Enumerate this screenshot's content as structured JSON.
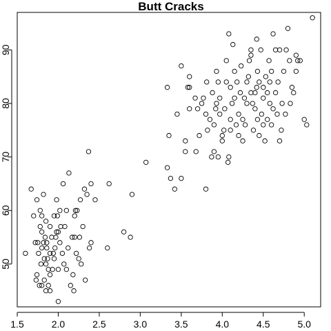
{
  "chart_data": {
    "type": "scatter",
    "title": "Butt Cracks",
    "xlabel": "",
    "ylabel": "",
    "xlim": [
      1.5,
      5.2
    ],
    "ylim": [
      42,
      97
    ],
    "x_ticks": [
      1.5,
      2.0,
      2.5,
      3.0,
      3.5,
      4.0,
      4.5,
      5.0
    ],
    "x_tick_labels": [
      "1.5",
      "2.0",
      "2.5",
      "3.0",
      "3.5",
      "4.0",
      "4.5",
      "5.0"
    ],
    "y_ticks": [
      50,
      60,
      70,
      80,
      90
    ],
    "y_tick_labels": [
      "50",
      "60",
      "70",
      "80",
      "90"
    ],
    "grid": false,
    "legend": "none",
    "marker": "open-circle",
    "points": [
      [
        1.6,
        52
      ],
      [
        1.67,
        64
      ],
      [
        1.7,
        59
      ],
      [
        1.72,
        54
      ],
      [
        1.73,
        47
      ],
      [
        1.74,
        48
      ],
      [
        1.74,
        62
      ],
      [
        1.75,
        54
      ],
      [
        1.76,
        52
      ],
      [
        1.77,
        46
      ],
      [
        1.78,
        57
      ],
      [
        1.78,
        60
      ],
      [
        1.79,
        50
      ],
      [
        1.8,
        46
      ],
      [
        1.8,
        59
      ],
      [
        1.8,
        53
      ],
      [
        1.8,
        56
      ],
      [
        1.82,
        63
      ],
      [
        1.82,
        54
      ],
      [
        1.83,
        51
      ],
      [
        1.83,
        47
      ],
      [
        1.84,
        55
      ],
      [
        1.85,
        50
      ],
      [
        1.85,
        45
      ],
      [
        1.85,
        58
      ],
      [
        1.86,
        53
      ],
      [
        1.86,
        54
      ],
      [
        1.87,
        51
      ],
      [
        1.88,
        49
      ],
      [
        1.88,
        46
      ],
      [
        1.9,
        45
      ],
      [
        1.9,
        48
      ],
      [
        1.9,
        52
      ],
      [
        1.9,
        57
      ],
      [
        1.92,
        55
      ],
      [
        1.93,
        49
      ],
      [
        1.94,
        52
      ],
      [
        1.95,
        51
      ],
      [
        1.95,
        59
      ],
      [
        1.96,
        53
      ],
      [
        1.97,
        55
      ],
      [
        1.98,
        56
      ],
      [
        1.98,
        62
      ],
      [
        1.99,
        59
      ],
      [
        2.0,
        43
      ],
      [
        2.0,
        49
      ],
      [
        2.0,
        56
      ],
      [
        2.02,
        54
      ],
      [
        2.02,
        60
      ],
      [
        2.03,
        57
      ],
      [
        2.05,
        52
      ],
      [
        2.06,
        65
      ],
      [
        2.07,
        50
      ],
      [
        2.08,
        57
      ],
      [
        2.1,
        49
      ],
      [
        2.1,
        60
      ],
      [
        2.12,
        53
      ],
      [
        2.13,
        67
      ],
      [
        2.15,
        46
      ],
      [
        2.17,
        55
      ],
      [
        2.18,
        48
      ],
      [
        2.19,
        45
      ],
      [
        2.2,
        55
      ],
      [
        2.2,
        59
      ],
      [
        2.21,
        60
      ],
      [
        2.22,
        52
      ],
      [
        2.23,
        60
      ],
      [
        2.25,
        51
      ],
      [
        2.26,
        55
      ],
      [
        2.27,
        62
      ],
      [
        2.28,
        50
      ],
      [
        2.3,
        57
      ],
      [
        2.32,
        64
      ],
      [
        2.33,
        47
      ],
      [
        2.35,
        63
      ],
      [
        2.37,
        71
      ],
      [
        2.38,
        53
      ],
      [
        2.4,
        54
      ],
      [
        2.4,
        65
      ],
      [
        2.45,
        62
      ],
      [
        2.6,
        53
      ],
      [
        2.62,
        65
      ],
      [
        2.8,
        56
      ],
      [
        2.88,
        55
      ],
      [
        2.9,
        63
      ],
      [
        3.07,
        69
      ],
      [
        3.33,
        83
      ],
      [
        3.33,
        68
      ],
      [
        3.35,
        74
      ],
      [
        3.37,
        66
      ],
      [
        3.42,
        64
      ],
      [
        3.45,
        78
      ],
      [
        3.5,
        66
      ],
      [
        3.5,
        87
      ],
      [
        3.55,
        71
      ],
      [
        3.55,
        73
      ],
      [
        3.58,
        83
      ],
      [
        3.6,
        85
      ],
      [
        3.6,
        83
      ],
      [
        3.6,
        79
      ],
      [
        3.67,
        81
      ],
      [
        3.68,
        71
      ],
      [
        3.7,
        79
      ],
      [
        3.72,
        74
      ],
      [
        3.75,
        80
      ],
      [
        3.77,
        81
      ],
      [
        3.8,
        78
      ],
      [
        3.8,
        64
      ],
      [
        3.81,
        84
      ],
      [
        3.82,
        75
      ],
      [
        3.85,
        77
      ],
      [
        3.87,
        70
      ],
      [
        3.88,
        82
      ],
      [
        3.9,
        76
      ],
      [
        3.9,
        71
      ],
      [
        3.92,
        79
      ],
      [
        3.93,
        80
      ],
      [
        3.93,
        86
      ],
      [
        3.95,
        84
      ],
      [
        3.95,
        70
      ],
      [
        3.97,
        81
      ],
      [
        3.97,
        78
      ],
      [
        4.0,
        73
      ],
      [
        4.0,
        74
      ],
      [
        4.02,
        75
      ],
      [
        4.03,
        79
      ],
      [
        4.05,
        88
      ],
      [
        4.05,
        84
      ],
      [
        4.07,
        69
      ],
      [
        4.08,
        70
      ],
      [
        4.08,
        93
      ],
      [
        4.1,
        75
      ],
      [
        4.1,
        77
      ],
      [
        4.1,
        83
      ],
      [
        4.12,
        80
      ],
      [
        4.13,
        91
      ],
      [
        4.15,
        81
      ],
      [
        4.15,
        86
      ],
      [
        4.17,
        76
      ],
      [
        4.18,
        84
      ],
      [
        4.2,
        78
      ],
      [
        4.2,
        74
      ],
      [
        4.22,
        82
      ],
      [
        4.23,
        87
      ],
      [
        4.25,
        77
      ],
      [
        4.25,
        73
      ],
      [
        4.27,
        81
      ],
      [
        4.28,
        76
      ],
      [
        4.3,
        84
      ],
      [
        4.3,
        80
      ],
      [
        4.32,
        85
      ],
      [
        4.33,
        88
      ],
      [
        4.35,
        89
      ],
      [
        4.35,
        90
      ],
      [
        4.35,
        82
      ],
      [
        4.37,
        80
      ],
      [
        4.38,
        75
      ],
      [
        4.4,
        82
      ],
      [
        4.4,
        79
      ],
      [
        4.42,
        83
      ],
      [
        4.42,
        92
      ],
      [
        4.43,
        86
      ],
      [
        4.43,
        77
      ],
      [
        4.45,
        84
      ],
      [
        4.45,
        74
      ],
      [
        4.47,
        90
      ],
      [
        4.48,
        78
      ],
      [
        4.5,
        81
      ],
      [
        4.5,
        83
      ],
      [
        4.5,
        76
      ],
      [
        4.52,
        73
      ],
      [
        4.53,
        85
      ],
      [
        4.55,
        77
      ],
      [
        4.55,
        82
      ],
      [
        4.57,
        88
      ],
      [
        4.58,
        84
      ],
      [
        4.58,
        80
      ],
      [
        4.6,
        86
      ],
      [
        4.6,
        76
      ],
      [
        4.62,
        93
      ],
      [
        4.62,
        79
      ],
      [
        4.65,
        90
      ],
      [
        4.65,
        82
      ],
      [
        4.67,
        78
      ],
      [
        4.68,
        84
      ],
      [
        4.7,
        73
      ],
      [
        4.7,
        90
      ],
      [
        4.72,
        75
      ],
      [
        4.73,
        80
      ],
      [
        4.75,
        86
      ],
      [
        4.77,
        78
      ],
      [
        4.78,
        90
      ],
      [
        4.8,
        94
      ],
      [
        4.82,
        88
      ],
      [
        4.83,
        80
      ],
      [
        4.85,
        83
      ],
      [
        4.87,
        82
      ],
      [
        4.9,
        86
      ],
      [
        4.9,
        89
      ],
      [
        4.92,
        88
      ],
      [
        4.95,
        88
      ],
      [
        5.0,
        77
      ],
      [
        5.03,
        76
      ],
      [
        5.1,
        96
      ]
    ]
  }
}
